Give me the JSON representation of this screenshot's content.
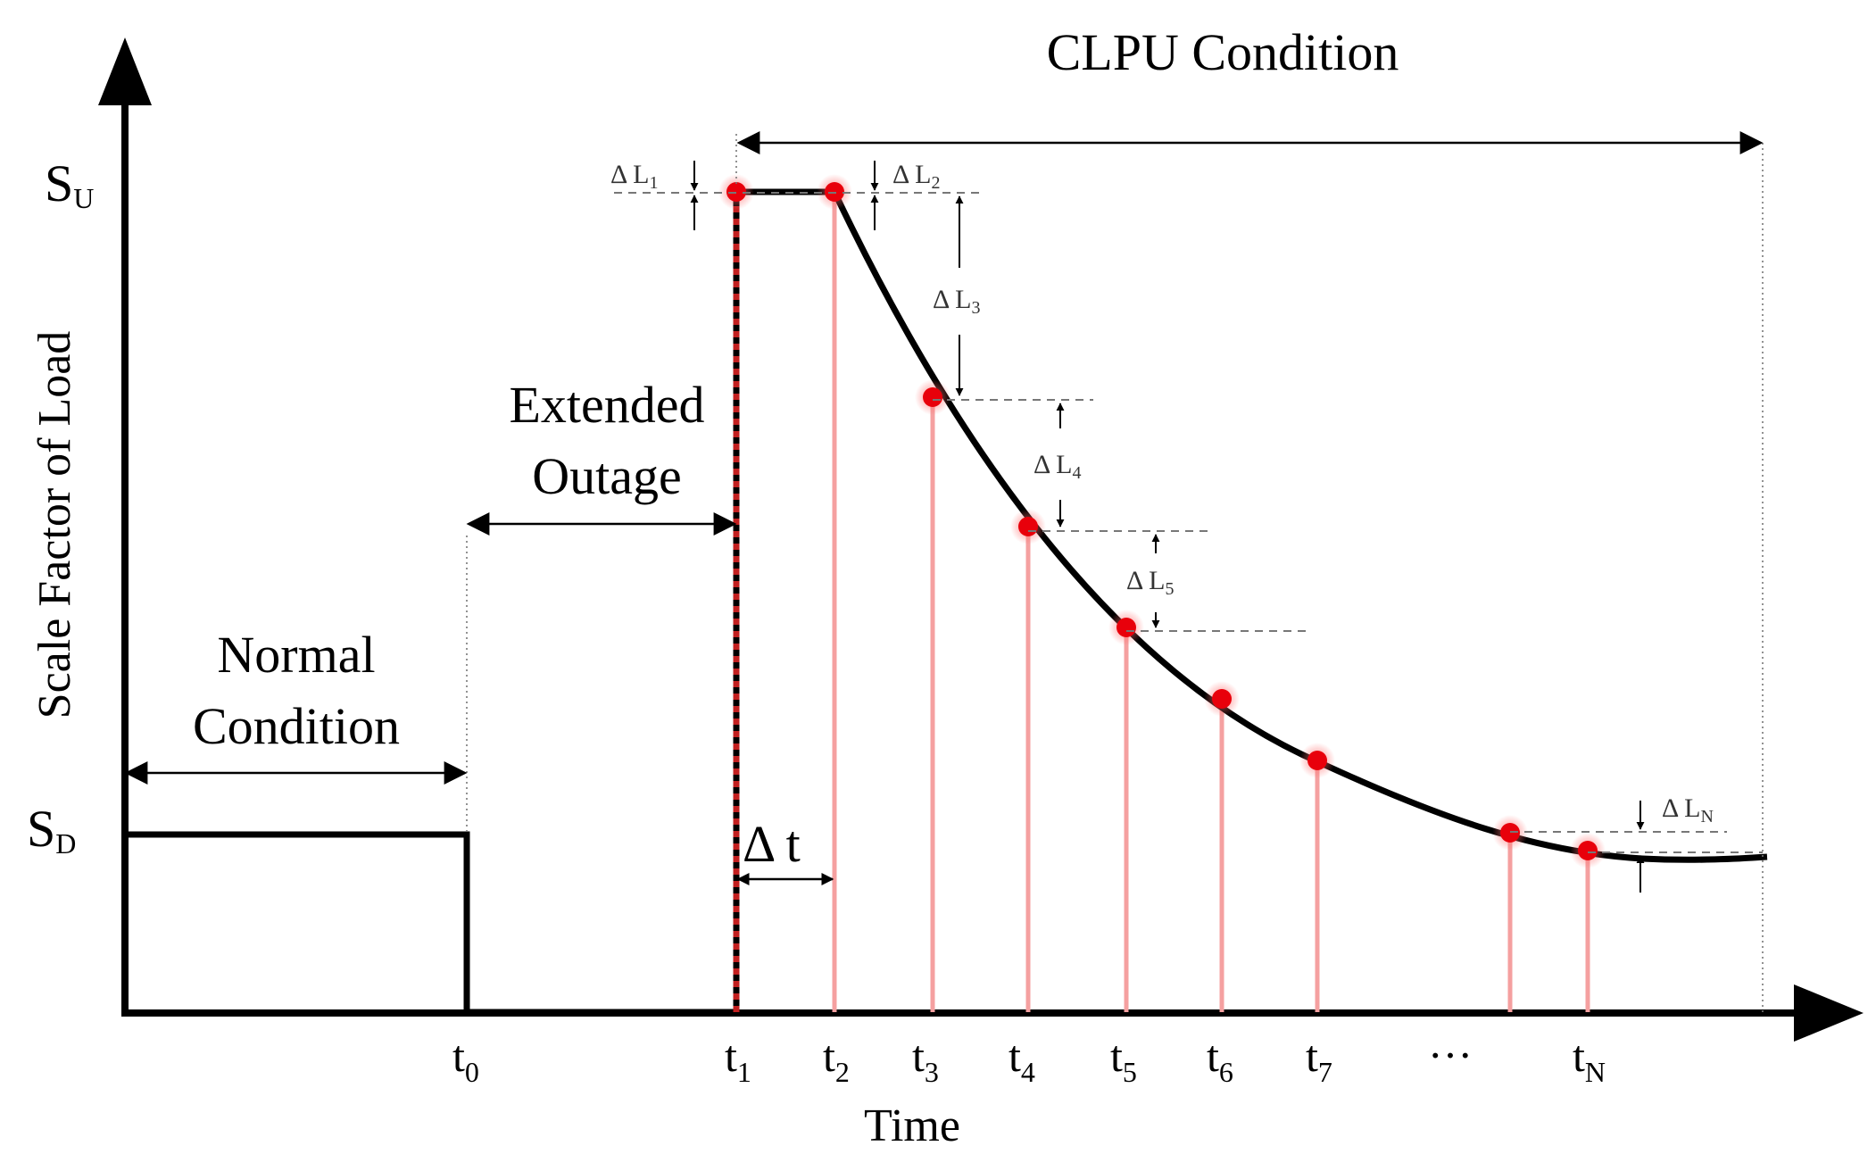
{
  "title": "CLPU Condition",
  "y_axis_label": "Scale Factor of Load",
  "x_axis_label": "Time",
  "levels": {
    "upper": {
      "main": "S",
      "sub": "U"
    },
    "lower": {
      "main": "S",
      "sub": "D"
    }
  },
  "regions": {
    "normal": {
      "line1": "Normal",
      "line2": "Condition"
    },
    "outage": {
      "line1": "Extended",
      "line2": "Outage"
    }
  },
  "delta_t": "Δ t",
  "time_ticks": [
    {
      "main": "t",
      "sub": "0"
    },
    {
      "main": "t",
      "sub": "1"
    },
    {
      "main": "t",
      "sub": "2"
    },
    {
      "main": "t",
      "sub": "3"
    },
    {
      "main": "t",
      "sub": "4"
    },
    {
      "main": "t",
      "sub": "5"
    },
    {
      "main": "t",
      "sub": "6"
    },
    {
      "main": "t",
      "sub": "7"
    },
    {
      "main": "…",
      "sub": ""
    },
    {
      "main": "t",
      "sub": "N"
    }
  ],
  "delta_labels": [
    {
      "main": "Δ L",
      "sub": "1"
    },
    {
      "main": "Δ L",
      "sub": "2"
    },
    {
      "main": "Δ L",
      "sub": "3"
    },
    {
      "main": "Δ L",
      "sub": "4"
    },
    {
      "main": "Δ L",
      "sub": "5"
    },
    {
      "main": "Δ L",
      "sub": "N"
    }
  ],
  "colors": {
    "curve": "#000000",
    "sample_point": "#e8000b",
    "sample_line": "#f5a0a0"
  }
}
